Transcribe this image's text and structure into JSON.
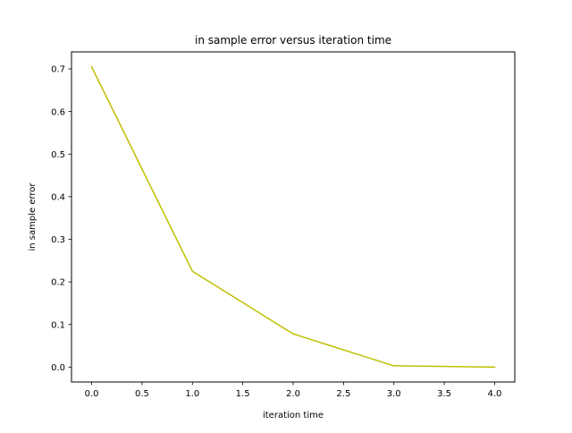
{
  "chart_data": {
    "type": "line",
    "title": "in sample error versus iteration time",
    "xlabel": "iteration time",
    "ylabel": "in sample error",
    "xlim": [
      -0.2,
      4.2
    ],
    "ylim": [
      -0.035,
      0.74
    ],
    "x_ticks": [
      0.0,
      0.5,
      1.0,
      1.5,
      2.0,
      2.5,
      3.0,
      3.5,
      4.0
    ],
    "x_tick_labels": [
      "0.0",
      "0.5",
      "1.0",
      "1.5",
      "2.0",
      "2.5",
      "3.0",
      "3.5",
      "4.0"
    ],
    "y_ticks": [
      0.0,
      0.1,
      0.2,
      0.3,
      0.4,
      0.5,
      0.6,
      0.7
    ],
    "y_tick_labels": [
      "0.0",
      "0.1",
      "0.2",
      "0.3",
      "0.4",
      "0.5",
      "0.6",
      "0.7"
    ],
    "grid": false,
    "series": [
      {
        "color": "#bfbf00",
        "x": [
          0,
          1,
          2,
          3,
          4
        ],
        "y": [
          0.705,
          0.225,
          0.078,
          0.003,
          0.0
        ]
      }
    ]
  }
}
